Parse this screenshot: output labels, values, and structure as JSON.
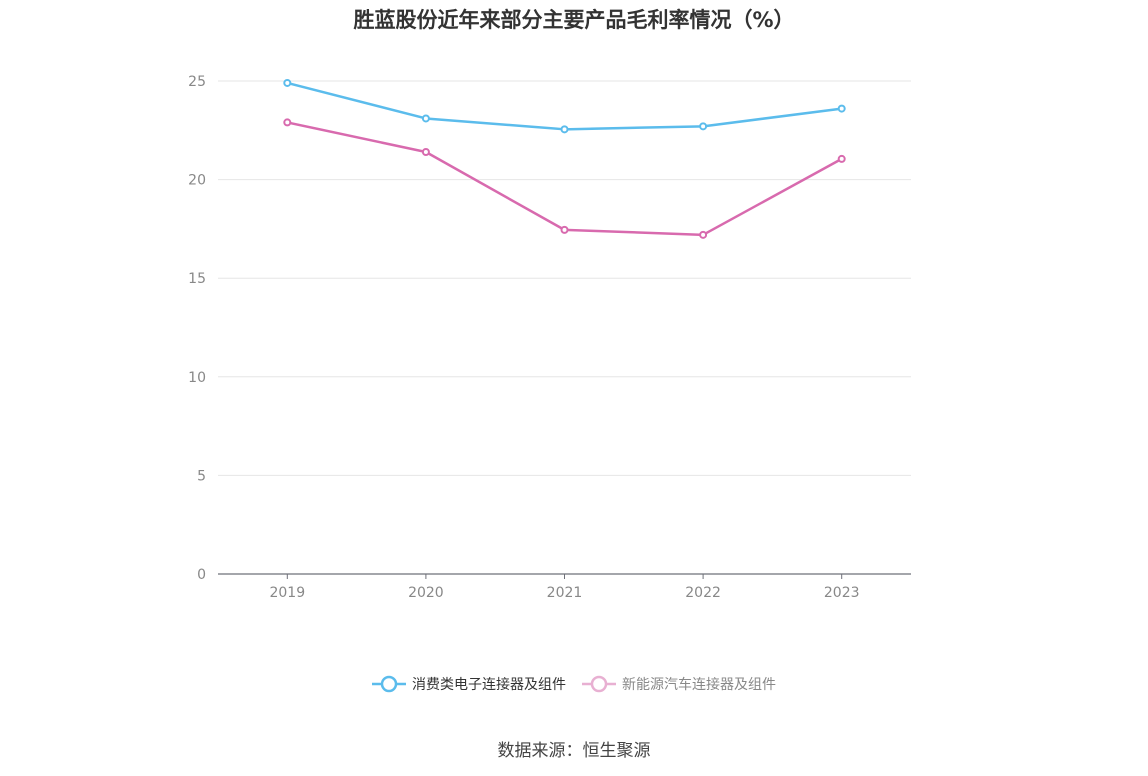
{
  "title": "胜蓝股份近年来部分主要产品毛利率情况（%）",
  "source": "数据来源：恒生聚源",
  "chart_data": {
    "type": "line",
    "title": "胜蓝股份近年来部分主要产品毛利率情况（%）",
    "categories": [
      "2019",
      "2020",
      "2021",
      "2022",
      "2023"
    ],
    "yticks": [
      "0",
      "5",
      "10",
      "15",
      "20",
      "25"
    ],
    "ylim": [
      0,
      27
    ],
    "grid": true,
    "legend_position": "bottom",
    "series": [
      {
        "name": "消费类电子连接器及组件",
        "color": "#5bbcec",
        "values": [
          24.9,
          23.1,
          22.55,
          22.7,
          23.6
        ]
      },
      {
        "name": "新能源汽车连接器及组件",
        "color": "#d86aae",
        "values": [
          22.9,
          21.4,
          17.45,
          17.2,
          21.05
        ]
      }
    ]
  }
}
